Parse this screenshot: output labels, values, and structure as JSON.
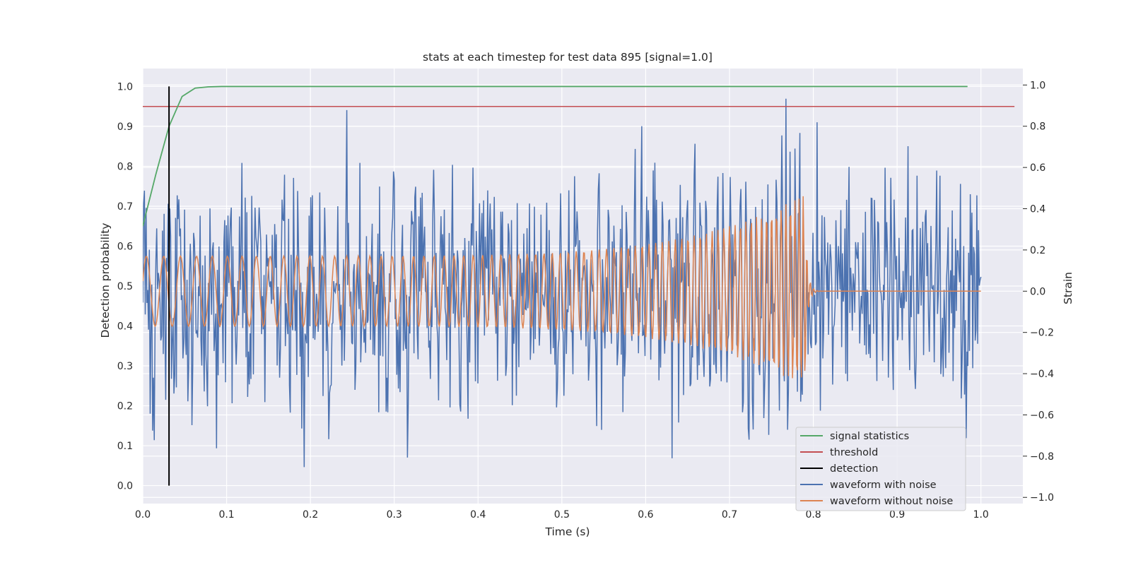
{
  "chart_data": {
    "type": "line",
    "title": "stats at each timestep for test data 895 [signal=1.0]",
    "xlabel": "Time (s)",
    "ylabel": "Detection probability",
    "ylabel_right": "Strain",
    "xlim": [
      0.0,
      1.05
    ],
    "ylim": [
      -0.045,
      1.045
    ],
    "ylim_right": [
      -1.03,
      1.08
    ],
    "x_ticks": [
      "0.0",
      "0.1",
      "0.2",
      "0.3",
      "0.4",
      "0.5",
      "0.6",
      "0.7",
      "0.8",
      "0.9",
      "1.0"
    ],
    "y_ticks": [
      "0.0",
      "0.1",
      "0.2",
      "0.3",
      "0.4",
      "0.5",
      "0.6",
      "0.7",
      "0.8",
      "0.9",
      "1.0"
    ],
    "y_ticks_right": [
      "1.0",
      "0.8",
      "0.6",
      "0.4",
      "0.2",
      "0.0",
      "−0.2",
      "−0.4",
      "−0.6",
      "−0.8",
      "−1.0"
    ],
    "grid": true,
    "legend_position": "lower-right",
    "series": [
      {
        "name": "signal statistics",
        "color": "#55a868",
        "axis": "left",
        "x": [
          0.0,
          0.0156,
          0.0313,
          0.0469,
          0.0625,
          0.0781,
          0.0938,
          0.2,
          0.4,
          0.6,
          0.8,
          0.984
        ],
        "y": [
          0.65,
          0.78,
          0.9,
          0.975,
          0.996,
          0.999,
          1.0,
          1.0,
          1.0,
          1.0,
          1.0,
          1.0
        ]
      },
      {
        "name": "threshold",
        "color": "#c44e52",
        "axis": "left",
        "x": [
          0.0,
          1.04
        ],
        "y": [
          0.95,
          0.95
        ]
      },
      {
        "name": "detection",
        "color": "#000000",
        "axis": "left",
        "x": [
          0.0313,
          0.0313
        ],
        "y": [
          0.0,
          1.0
        ]
      },
      {
        "name": "waveform with noise",
        "color": "#4c72b0",
        "axis": "right",
        "x_range": [
          0.0,
          1.0
        ],
        "samples": 1024,
        "noise_std": 0.27,
        "range": [
          -0.93,
          1.0
        ]
      },
      {
        "name": "waveform without noise",
        "color": "#dd8452",
        "axis": "right",
        "x_range": [
          0.0,
          1.0
        ],
        "merger_time": 0.79,
        "amplitude_start": 0.17,
        "amplitude_peak": 0.47,
        "frequency_start_hz": 47,
        "frequency_peak_hz": 230
      }
    ]
  }
}
